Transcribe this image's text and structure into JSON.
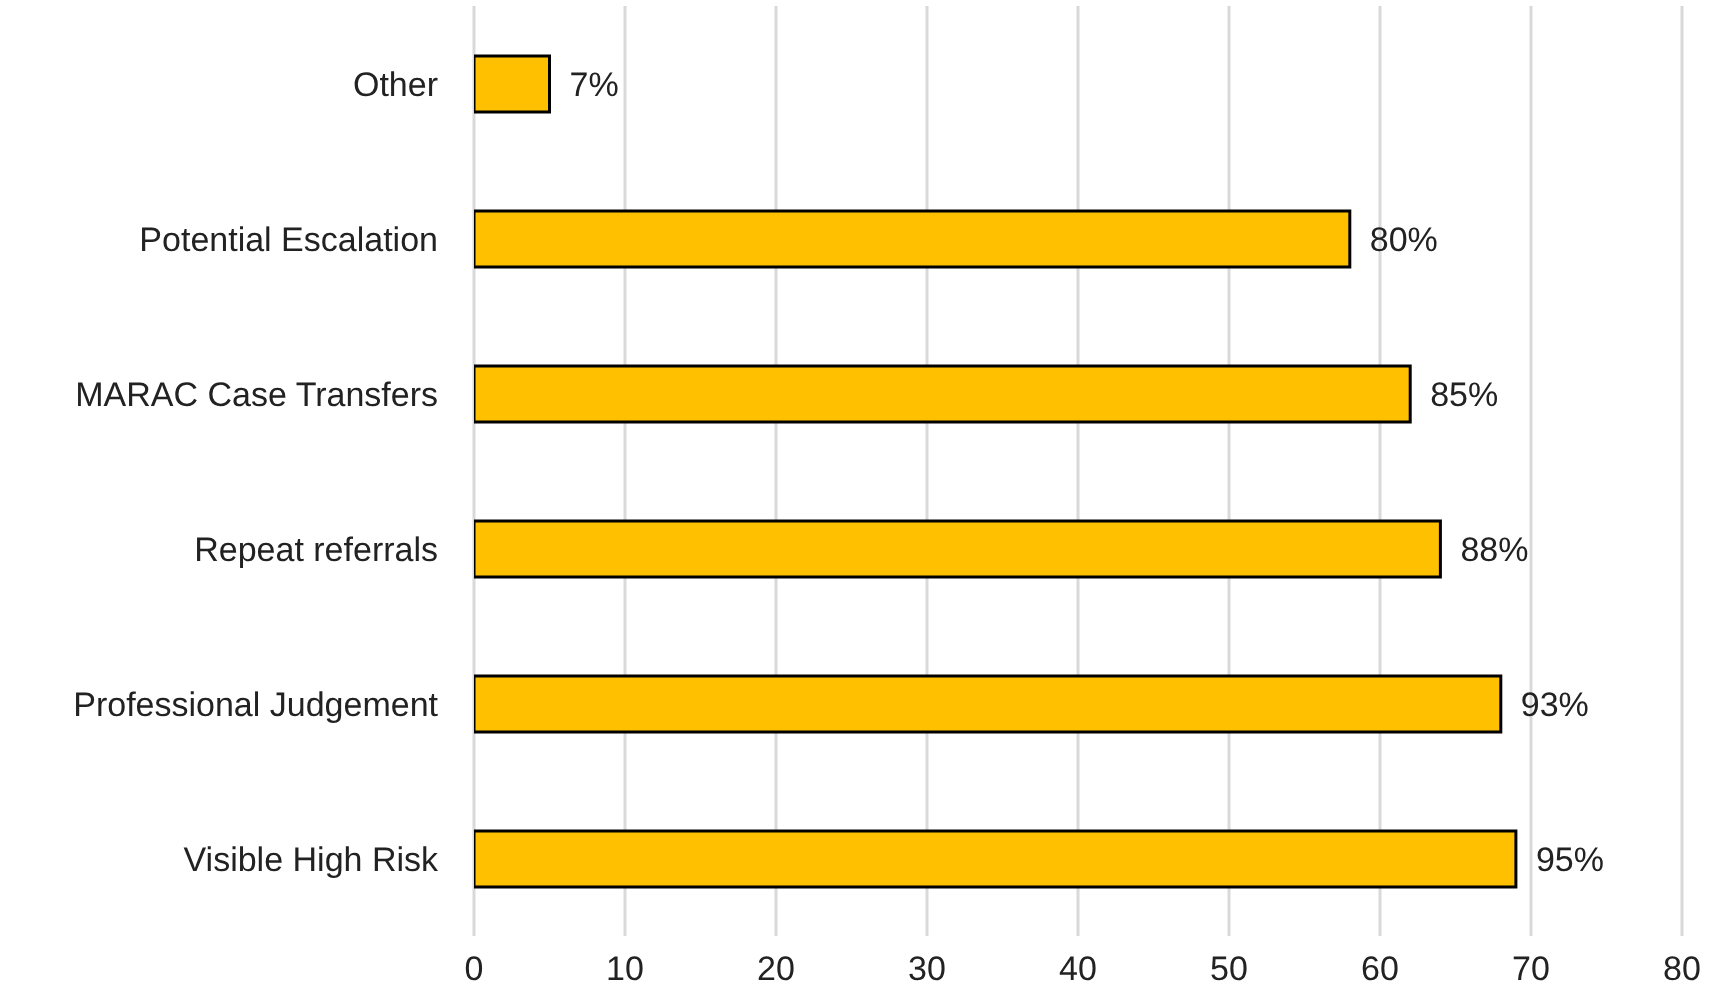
{
  "chart_data": {
    "type": "bar",
    "orientation": "horizontal",
    "categories": [
      "Other",
      "Potential Escalation",
      "MARAC Case Transfers",
      "Repeat referrals",
      "Professional Judgement",
      "Visible High Risk"
    ],
    "values": [
      5,
      58,
      62,
      64,
      68,
      69
    ],
    "color": "#ffc000",
    "xlim": [
      0,
      80
    ],
    "xticks": [
      0,
      10,
      20,
      30,
      40,
      50,
      60,
      70,
      80
    ],
    "grid": "x",
    "annotations": [
      {
        "text": "7%",
        "x": 5,
        "y": "Other"
      },
      {
        "text": "80%",
        "x": 58,
        "y": "Potential Escalation"
      },
      {
        "text": "85%",
        "x": 62,
        "y": "MARAC Case Transfers"
      },
      {
        "text": "88%",
        "x": 64,
        "y": "Repeat referrals"
      },
      {
        "text": "93%",
        "x": 68,
        "y": "Professional Judgement"
      },
      {
        "text": "95%",
        "x": 69,
        "y": "Visible High Risk"
      }
    ]
  }
}
